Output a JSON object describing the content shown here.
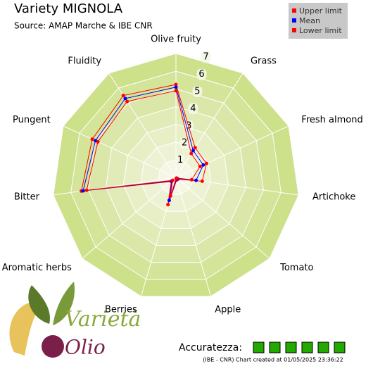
{
  "chart_data": {
    "type": "radar",
    "title": "Variety MIGNOLA",
    "subtitle": "Source: AMAP Marche & IBE CNR",
    "categories": [
      "Olive fruity",
      "Grass",
      "Fresh almond",
      "Artichoke",
      "Tomato",
      "Apple",
      "Berries",
      "Aromatic herbs",
      "Bitter",
      "Pungent",
      "Fluidity"
    ],
    "series": [
      {
        "name": "Upper limit",
        "color": "#ff0000",
        "values": [
          5.25,
          2.0,
          1.9,
          1.5,
          0.15,
          0.15,
          1.6,
          0.35,
          5.4,
          5.2,
          5.5
        ]
      },
      {
        "name": "Mean",
        "color": "#0000ff",
        "values": [
          5.1,
          1.8,
          1.7,
          1.15,
          0.1,
          0.1,
          1.35,
          0.3,
          5.3,
          5.0,
          5.3
        ]
      },
      {
        "name": "Lower limit",
        "color": "#ff0000",
        "values": [
          4.9,
          1.6,
          1.5,
          0.9,
          0.05,
          0.05,
          1.1,
          0.25,
          5.1,
          4.85,
          5.1
        ]
      }
    ],
    "rlim": [
      0,
      7
    ],
    "rticks": [
      1,
      2,
      3,
      4,
      5,
      6,
      7
    ],
    "legend": "top-right",
    "accuracy_label": "Accuratezza:",
    "accuracy_level": 6,
    "accuracy_color": "#22aa00",
    "footer": "(IBE - CNR) Chart created at 01/05/2025 23:36:22",
    "logo": {
      "word1": "Varietà",
      "word2": "Olio"
    }
  }
}
